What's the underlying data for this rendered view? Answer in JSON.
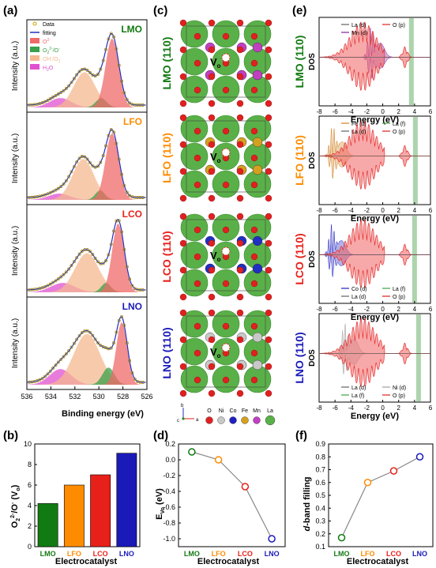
{
  "panel_labels": {
    "a": "(a)",
    "b": "(b)",
    "c": "(c)",
    "d": "(d)",
    "e": "(e)",
    "f": "(f)"
  },
  "colors": {
    "LMO": "#127a12",
    "LFO": "#ff8c00",
    "LCO": "#e8201a",
    "LNO": "#1a1ab8"
  },
  "panel_a": {
    "ylabel": "Intensity (a.u.)",
    "xlabel": "Binding energy (eV)",
    "xticks": [
      "536",
      "534",
      "532",
      "530",
      "528",
      "526"
    ],
    "legend": [
      {
        "label": "Data",
        "color": "#c8a000"
      },
      {
        "label": "fitting",
        "color": "#2030c0"
      },
      {
        "label": "O",
        "sup": "2-",
        "color": "#f06a6a"
      },
      {
        "label": "O",
        "sub": "2",
        "sup": "2-",
        "tail": "/O",
        "tailsup": "-",
        "color": "#3aa04a"
      },
      {
        "label": "OH",
        "sup": "-",
        "tail": "/O",
        "tailsub": "2",
        "color": "#f5b890"
      },
      {
        "label": "H",
        "sub": "2",
        "tail": "O",
        "color": "#e050d0"
      }
    ],
    "subplots": [
      {
        "name": "LMO"
      },
      {
        "name": "LFO"
      },
      {
        "name": "LCO"
      },
      {
        "name": "LNO"
      }
    ]
  },
  "panel_b": {
    "ylabel_main": "O",
    "ylabel_sub": "2",
    "ylabel_sup": "2-",
    "ylabel_rest": "/O",
    "ylabel_sup2": "-",
    "ylabel_paren": " (V",
    "ylabel_sub2": "o",
    "ylabel_close": ")",
    "xlabel": "Electrocatalyst",
    "yticks": [
      "0",
      "2",
      "4",
      "6",
      "8",
      "10"
    ],
    "chart_data": {
      "type": "bar",
      "categories": [
        "LMO",
        "LFO",
        "LCO",
        "LNO"
      ],
      "values": [
        4.2,
        6.0,
        7.0,
        9.1
      ],
      "ylim": [
        0,
        10
      ]
    }
  },
  "panel_c": {
    "structures": [
      {
        "name": "LMO (110)"
      },
      {
        "name": "LFO (110)"
      },
      {
        "name": "LCO (110)"
      },
      {
        "name": "LNO (110)"
      }
    ],
    "vacancy_label": "V",
    "vacancy_sub": "o",
    "legend": [
      {
        "label": "O",
        "color": "#e02020"
      },
      {
        "label": "Ni",
        "color": "#c8c8c8"
      },
      {
        "label": "Co",
        "color": "#2020c0"
      },
      {
        "label": "Fe",
        "color": "#d4a020"
      },
      {
        "label": "Mn",
        "color": "#c040c0"
      },
      {
        "label": "La",
        "color": "#5ab048"
      }
    ],
    "axes": {
      "b": "b",
      "c": "c",
      "a": "a"
    }
  },
  "panel_d": {
    "ylabel": "E",
    "ylabel_sub": "Vo",
    "ylabel_unit": " (eV)",
    "xlabel": "Electrocatalyst",
    "yticks": [
      "0.2",
      "0.0",
      "-0.2",
      "-0.4",
      "-0.6",
      "-0.8",
      "-1.0"
    ],
    "chart_data": {
      "type": "line",
      "categories": [
        "LMO",
        "LFO",
        "LCO",
        "LNO"
      ],
      "values": [
        0.1,
        0.0,
        -0.34,
        -1.0
      ],
      "ylim": [
        -1.1,
        0.2
      ]
    }
  },
  "panel_e": {
    "ylabel": "DOS",
    "xlabel": "Energy (eV)",
    "xticks": [
      "-8",
      "-6",
      "-4",
      "-2",
      "0",
      "2",
      "4",
      "6"
    ],
    "subplots": [
      {
        "name": "LMO (110)",
        "legend": [
          {
            "label": "La (d)",
            "color": "#606060"
          },
          {
            "label": "O (p)",
            "color": "#e02020"
          },
          {
            "label": "Mn (d)",
            "color": "#8020a0"
          }
        ]
      },
      {
        "name": "LFO (110)",
        "legend": [
          {
            "label": "Fe (d)",
            "color": "#d08020"
          },
          {
            "label": "La (f)",
            "color": "#40a040"
          },
          {
            "label": "La (d)",
            "color": "#606060"
          },
          {
            "label": "O (p)",
            "color": "#e02020"
          }
        ]
      },
      {
        "name": "LCO (110)",
        "legend": [
          {
            "label": "Co (d)",
            "color": "#2020c0"
          },
          {
            "label": "La (f)",
            "color": "#40a040"
          },
          {
            "label": "La (d)",
            "color": "#606060"
          },
          {
            "label": "O (p)",
            "color": "#e02020"
          }
        ]
      },
      {
        "name": "LNO (110)",
        "legend": [
          {
            "label": "La (d)",
            "color": "#606060"
          },
          {
            "label": "Ni (d)",
            "color": "#a0a0a0"
          },
          {
            "label": "La (f)",
            "color": "#40a040"
          },
          {
            "label": "O (p)",
            "color": "#e02020"
          }
        ]
      }
    ]
  },
  "panel_f": {
    "ylabel_d": "d",
    "ylabel_rest": "-band filling",
    "xlabel": "Electrocatalyst",
    "yticks": [
      "0.9",
      "0.8",
      "0.7",
      "0.6",
      "0.5",
      "0.4",
      "0.3",
      "0.2",
      "0.1"
    ],
    "chart_data": {
      "type": "line",
      "categories": [
        "LMO",
        "LFO",
        "LCO",
        "LNO"
      ],
      "values": [
        0.17,
        0.6,
        0.69,
        0.8
      ],
      "ylim": [
        0.1,
        0.9
      ]
    }
  }
}
